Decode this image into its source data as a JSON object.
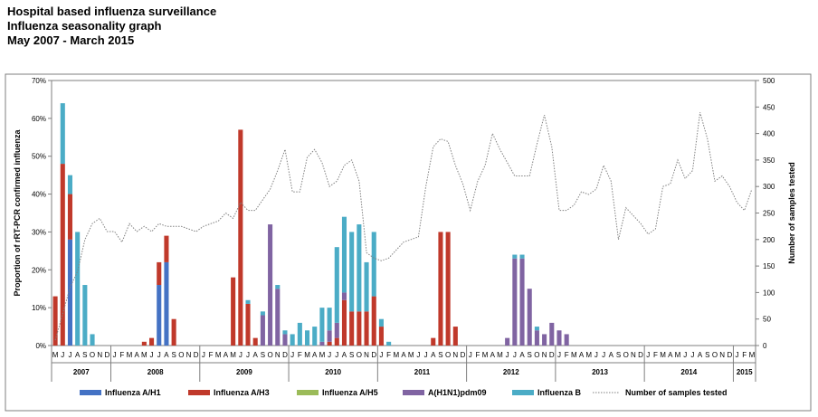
{
  "page": {
    "title_lines": [
      "Hospital based influenza surveillance",
      "Influenza seasonality graph",
      "May 2007 - March 2015"
    ]
  },
  "chart_data": {
    "type": "bar",
    "stacked": true,
    "secondary_line": true,
    "ylabel": "Proportion of rRT-PCR confirmed influenza",
    "y2label": "Number of samples tested",
    "ylim": [
      0,
      70
    ],
    "y_ticks": [
      0,
      10,
      20,
      30,
      40,
      50,
      60,
      70
    ],
    "y_tick_labels": [
      "0%",
      "10%",
      "20%",
      "30%",
      "40%",
      "50%",
      "60%",
      "70%"
    ],
    "y2lim": [
      0,
      500
    ],
    "y2_ticks": [
      0,
      50,
      100,
      150,
      200,
      250,
      300,
      350,
      400,
      450,
      500
    ],
    "grid": false,
    "legend_position": "bottom",
    "years": [
      {
        "label": "2007",
        "start": 0,
        "count": 8
      },
      {
        "label": "2008",
        "start": 8,
        "count": 12
      },
      {
        "label": "2009",
        "start": 20,
        "count": 12
      },
      {
        "label": "2010",
        "start": 32,
        "count": 12
      },
      {
        "label": "2011",
        "start": 44,
        "count": 12
      },
      {
        "label": "2012",
        "start": 56,
        "count": 12
      },
      {
        "label": "2013",
        "start": 68,
        "count": 12
      },
      {
        "label": "2014",
        "start": 80,
        "count": 12
      },
      {
        "label": "2015",
        "start": 92,
        "count": 3
      }
    ],
    "categories": [
      "M",
      "J",
      "J",
      "A",
      "S",
      "O",
      "N",
      "D",
      "J",
      "F",
      "M",
      "A",
      "M",
      "J",
      "J",
      "A",
      "S",
      "O",
      "N",
      "D",
      "J",
      "F",
      "M",
      "A",
      "M",
      "J",
      "J",
      "A",
      "S",
      "O",
      "N",
      "D",
      "J",
      "F",
      "M",
      "A",
      "M",
      "J",
      "J",
      "A",
      "S",
      "O",
      "N",
      "D",
      "J",
      "F",
      "M",
      "A",
      "M",
      "J",
      "J",
      "A",
      "S",
      "O",
      "N",
      "D",
      "J",
      "F",
      "M",
      "A",
      "M",
      "J",
      "J",
      "A",
      "S",
      "O",
      "N",
      "D",
      "J",
      "F",
      "M",
      "A",
      "M",
      "J",
      "J",
      "A",
      "S",
      "O",
      "N",
      "D",
      "J",
      "F",
      "M",
      "A",
      "M",
      "J",
      "J",
      "A",
      "S",
      "O",
      "N",
      "D",
      "J",
      "F",
      "M"
    ],
    "series": [
      {
        "name": "Influenza A/H1",
        "color": "#4472C4",
        "values": [
          0,
          0,
          28,
          0,
          0,
          0,
          0,
          0,
          0,
          0,
          0,
          0,
          0,
          0,
          16,
          22,
          0,
          0,
          0,
          0,
          0,
          0,
          0,
          0,
          0,
          0,
          0,
          0,
          0,
          0,
          0,
          0,
          0,
          0,
          0,
          0,
          0,
          0,
          0,
          0,
          0,
          0,
          0,
          0,
          0,
          0,
          0,
          0,
          0,
          0,
          0,
          0,
          0,
          0,
          0,
          0,
          0,
          0,
          0,
          0,
          0,
          0,
          0,
          0,
          0,
          0,
          0,
          0,
          0,
          0,
          0,
          0,
          0,
          0,
          0,
          0,
          0,
          0,
          0,
          0,
          0,
          0,
          0,
          0,
          0,
          0,
          0,
          0,
          0,
          0,
          0,
          0,
          0,
          0,
          0
        ]
      },
      {
        "name": "Influenza A/H3",
        "color": "#C0392B",
        "values": [
          13,
          48,
          12,
          0,
          0,
          0,
          0,
          0,
          0,
          0,
          0,
          0,
          1,
          2,
          6,
          7,
          7,
          0,
          0,
          0,
          0,
          0,
          0,
          0,
          18,
          57,
          11,
          2,
          0,
          0,
          0,
          0,
          0,
          0,
          0,
          0,
          0,
          1,
          2,
          12,
          9,
          9,
          9,
          13,
          5,
          0,
          0,
          0,
          0,
          0,
          0,
          2,
          30,
          30,
          5,
          0,
          0,
          0,
          0,
          0,
          0,
          0,
          0,
          0,
          0,
          0,
          0,
          0,
          0,
          0,
          0,
          0,
          0,
          0,
          0,
          0,
          0,
          0,
          0,
          0,
          0,
          0,
          0,
          0,
          0,
          0,
          0,
          0,
          0,
          0,
          0,
          0,
          0,
          0,
          0
        ]
      },
      {
        "name": "Influenza A/H5",
        "color": "#9BBB59",
        "values": [
          0,
          0,
          0,
          0,
          0,
          0,
          0,
          0,
          0,
          0,
          0,
          0,
          0,
          0,
          0,
          0,
          0,
          0,
          0,
          0,
          0,
          0,
          0,
          0,
          0,
          0,
          0,
          0,
          0,
          0,
          0,
          0,
          0,
          0,
          0,
          0,
          0,
          0,
          0,
          0,
          0,
          0,
          0,
          0,
          0,
          0,
          0,
          0,
          0,
          0,
          0,
          0,
          0,
          0,
          0,
          0,
          0,
          0,
          0,
          0,
          0,
          0,
          0,
          0,
          0,
          0,
          0,
          0,
          0,
          0,
          0,
          0,
          0,
          0,
          0,
          0,
          0,
          0,
          0,
          0,
          0,
          0,
          0,
          0,
          0,
          0,
          0,
          0,
          0,
          0,
          0,
          0,
          0,
          0,
          0
        ]
      },
      {
        "name": "A(H1N1)pdm09",
        "color": "#8064A2",
        "values": [
          0,
          0,
          0,
          0,
          0,
          0,
          0,
          0,
          0,
          0,
          0,
          0,
          0,
          0,
          0,
          0,
          0,
          0,
          0,
          0,
          0,
          0,
          0,
          0,
          0,
          0,
          0,
          0,
          8,
          32,
          15,
          3,
          0,
          0,
          0,
          0,
          1,
          3,
          4,
          2,
          0,
          0,
          0,
          0,
          0,
          0,
          0,
          0,
          0,
          0,
          0,
          0,
          0,
          0,
          0,
          0,
          0,
          0,
          0,
          0,
          0,
          2,
          23,
          23,
          15,
          4,
          3,
          6,
          4,
          3,
          0,
          0,
          0,
          0,
          0,
          0,
          0,
          0,
          0,
          0,
          0,
          0,
          0,
          0,
          0,
          0,
          0,
          0,
          0,
          0,
          0,
          0,
          0,
          0,
          0
        ]
      },
      {
        "name": "Influenza B",
        "color": "#4BACC6",
        "values": [
          0,
          16,
          5,
          30,
          16,
          3,
          0,
          0,
          0,
          0,
          0,
          0,
          0,
          0,
          0,
          0,
          0,
          0,
          0,
          0,
          0,
          0,
          0,
          0,
          0,
          0,
          1,
          0,
          1,
          0,
          1,
          1,
          3,
          6,
          4,
          5,
          9,
          6,
          20,
          20,
          21,
          23,
          13,
          17,
          2,
          1,
          0,
          0,
          0,
          0,
          0,
          0,
          0,
          0,
          0,
          0,
          0,
          0,
          0,
          0,
          0,
          0,
          1,
          1,
          0,
          1,
          0,
          0,
          0,
          0,
          0,
          0,
          0,
          0,
          0,
          0,
          0,
          0,
          0,
          0,
          0,
          0,
          0,
          0,
          0,
          0,
          0,
          0,
          0,
          0,
          0,
          0,
          0,
          0,
          0
        ]
      }
    ],
    "line": {
      "name": "Number of samples tested",
      "color": "#808080",
      "dash": "dotted",
      "values": [
        10,
        60,
        110,
        140,
        200,
        230,
        240,
        215,
        215,
        195,
        230,
        215,
        225,
        215,
        230,
        225,
        225,
        225,
        220,
        215,
        225,
        230,
        235,
        250,
        240,
        270,
        255,
        255,
        275,
        295,
        330,
        370,
        290,
        290,
        355,
        370,
        345,
        300,
        310,
        340,
        350,
        310,
        175,
        165,
        160,
        165,
        180,
        195,
        200,
        205,
        300,
        375,
        390,
        385,
        340,
        305,
        255,
        310,
        340,
        400,
        370,
        345,
        320,
        320,
        320,
        380,
        435,
        375,
        255,
        255,
        265,
        290,
        285,
        295,
        340,
        310,
        200,
        260,
        245,
        230,
        210,
        220,
        300,
        305,
        350,
        315,
        330,
        440,
        390,
        310,
        320,
        300,
        270,
        255,
        295
      ]
    }
  },
  "legend": {
    "items": [
      {
        "label": "Influenza A/H1",
        "color": "#4472C4",
        "kind": "swatch"
      },
      {
        "label": "Influenza A/H3",
        "color": "#C0392B",
        "kind": "swatch"
      },
      {
        "label": "Influenza A/H5",
        "color": "#9BBB59",
        "kind": "swatch"
      },
      {
        "label": "A(H1N1)pdm09",
        "color": "#8064A2",
        "kind": "swatch"
      },
      {
        "label": "Influenza B",
        "color": "#4BACC6",
        "kind": "swatch"
      },
      {
        "label": "Number of samples tested",
        "color": "#808080",
        "kind": "line"
      }
    ]
  }
}
